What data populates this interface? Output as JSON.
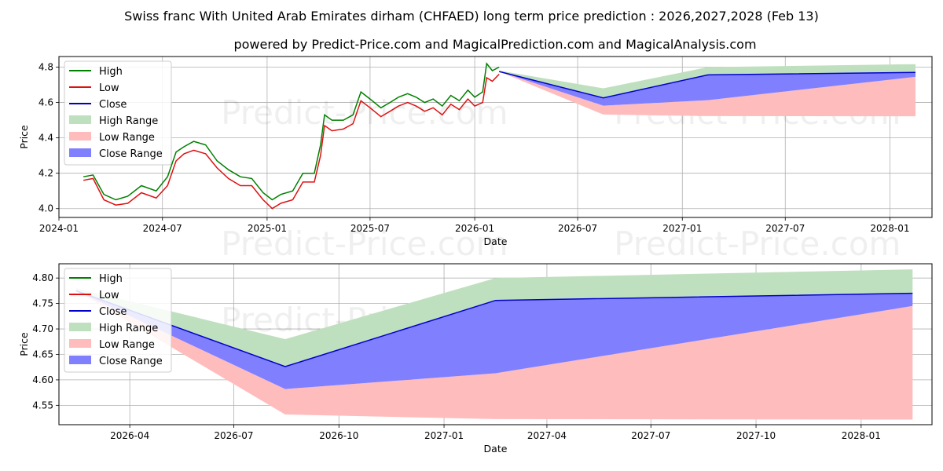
{
  "title_line1": "Swiss franc With United Arab Emirates dirham (CHFAED) long term price prediction : 2026,2027,2028 (Feb 13)",
  "title_line2": "powered by Predict-Price.com and MagicalPrediction.com and MagicalAnalysis.com",
  "watermark": "Predict-Price.com",
  "colors": {
    "high": "#008000",
    "low": "#dd1111",
    "close": "#0000cc",
    "high_range": "#bfe0bf",
    "low_range": "#ffbcbc",
    "close_range": "#8080ff"
  },
  "chart_data": [
    {
      "type": "line",
      "panel": "top",
      "xlabel": "Date",
      "ylabel": "Price",
      "ylim": [
        3.95,
        4.86
      ],
      "xlim": [
        "2024-01-01",
        "2028-03-15"
      ],
      "yticks": [
        4.0,
        4.2,
        4.4,
        4.6,
        4.8
      ],
      "ytick_labels": [
        "4.0",
        "4.2",
        "4.4",
        "4.6",
        "4.8"
      ],
      "xticks": [
        "2024-01-01",
        "2024-07-01",
        "2025-01-01",
        "2025-07-01",
        "2026-01-01",
        "2026-07-01",
        "2027-01-01",
        "2027-07-01",
        "2028-01-01"
      ],
      "xtick_labels": [
        "2024-01",
        "2024-07",
        "2025-01",
        "2025-07",
        "2026-01",
        "2026-07",
        "2027-01",
        "2027-07",
        "2028-01"
      ],
      "legend": [
        "High",
        "Low",
        "Close",
        "High Range",
        "Low Range",
        "Close Range"
      ],
      "legend_position": "top-left",
      "history": {
        "x": [
          "2024-02-13",
          "2024-03-01",
          "2024-03-20",
          "2024-04-10",
          "2024-05-01",
          "2024-05-25",
          "2024-06-20",
          "2024-07-10",
          "2024-07-25",
          "2024-08-08",
          "2024-08-25",
          "2024-09-15",
          "2024-10-05",
          "2024-10-25",
          "2024-11-15",
          "2024-12-05",
          "2024-12-25",
          "2025-01-10",
          "2025-01-25",
          "2025-02-15",
          "2025-03-05",
          "2025-03-25",
          "2025-04-05",
          "2025-04-12",
          "2025-04-25",
          "2025-05-15",
          "2025-06-01",
          "2025-06-15",
          "2025-07-01",
          "2025-07-20",
          "2025-08-05",
          "2025-08-20",
          "2025-09-05",
          "2025-09-20",
          "2025-10-05",
          "2025-10-20",
          "2025-11-05",
          "2025-11-20",
          "2025-12-05",
          "2025-12-20",
          "2026-01-01",
          "2026-01-15",
          "2026-01-22",
          "2026-02-01",
          "2026-02-13"
        ],
        "high": [
          4.18,
          4.19,
          4.08,
          4.05,
          4.07,
          4.13,
          4.1,
          4.18,
          4.32,
          4.35,
          4.38,
          4.36,
          4.27,
          4.22,
          4.18,
          4.17,
          4.09,
          4.05,
          4.08,
          4.1,
          4.2,
          4.2,
          4.36,
          4.53,
          4.5,
          4.5,
          4.53,
          4.66,
          4.62,
          4.57,
          4.6,
          4.63,
          4.65,
          4.63,
          4.6,
          4.62,
          4.58,
          4.64,
          4.61,
          4.67,
          4.63,
          4.66,
          4.82,
          4.78,
          4.8
        ],
        "low": [
          4.16,
          4.17,
          4.05,
          4.02,
          4.03,
          4.09,
          4.06,
          4.13,
          4.27,
          4.31,
          4.33,
          4.31,
          4.23,
          4.17,
          4.13,
          4.13,
          4.05,
          4.0,
          4.03,
          4.05,
          4.15,
          4.15,
          4.3,
          4.47,
          4.44,
          4.45,
          4.48,
          4.61,
          4.57,
          4.52,
          4.55,
          4.58,
          4.6,
          4.58,
          4.55,
          4.57,
          4.53,
          4.59,
          4.56,
          4.62,
          4.58,
          4.6,
          4.74,
          4.72,
          4.76
        ]
      },
      "forecast": {
        "x": [
          "2026-02-13",
          "2026-08-15",
          "2027-02-15",
          "2028-02-15"
        ],
        "close": [
          4.775,
          4.626,
          4.756,
          4.77
        ],
        "high_range_top": [
          4.78,
          4.68,
          4.8,
          4.817
        ],
        "close_range_low": [
          4.775,
          4.582,
          4.613,
          4.745
        ],
        "low_range_bottom": [
          4.775,
          4.532,
          4.523,
          4.522
        ]
      }
    },
    {
      "type": "line",
      "panel": "bottom",
      "xlabel": "Date",
      "ylabel": "Price",
      "ylim": [
        4.512,
        4.828
      ],
      "xlim": [
        "2026-01-29",
        "2028-03-03"
      ],
      "yticks": [
        4.55,
        4.6,
        4.65,
        4.7,
        4.75,
        4.8
      ],
      "ytick_labels": [
        "4.55",
        "4.60",
        "4.65",
        "4.70",
        "4.75",
        "4.80"
      ],
      "xticks": [
        "2026-04-01",
        "2026-07-01",
        "2026-10-01",
        "2027-01-01",
        "2027-04-01",
        "2027-07-01",
        "2027-10-01",
        "2028-01-01"
      ],
      "xtick_labels": [
        "2026-04",
        "2026-07",
        "2026-10",
        "2027-01",
        "2027-04",
        "2027-07",
        "2027-10",
        "2028-01"
      ],
      "legend": [
        "High",
        "Low",
        "Close",
        "High Range",
        "Low Range",
        "Close Range"
      ],
      "legend_position": "top-left",
      "forecast": {
        "x": [
          "2026-02-13",
          "2026-08-15",
          "2027-02-15",
          "2028-02-15"
        ],
        "close": [
          4.775,
          4.626,
          4.756,
          4.77
        ],
        "high_range_top": [
          4.78,
          4.68,
          4.8,
          4.817
        ],
        "close_range_low": [
          4.775,
          4.582,
          4.613,
          4.745
        ],
        "low_range_bottom": [
          4.775,
          4.532,
          4.523,
          4.522
        ]
      }
    }
  ]
}
